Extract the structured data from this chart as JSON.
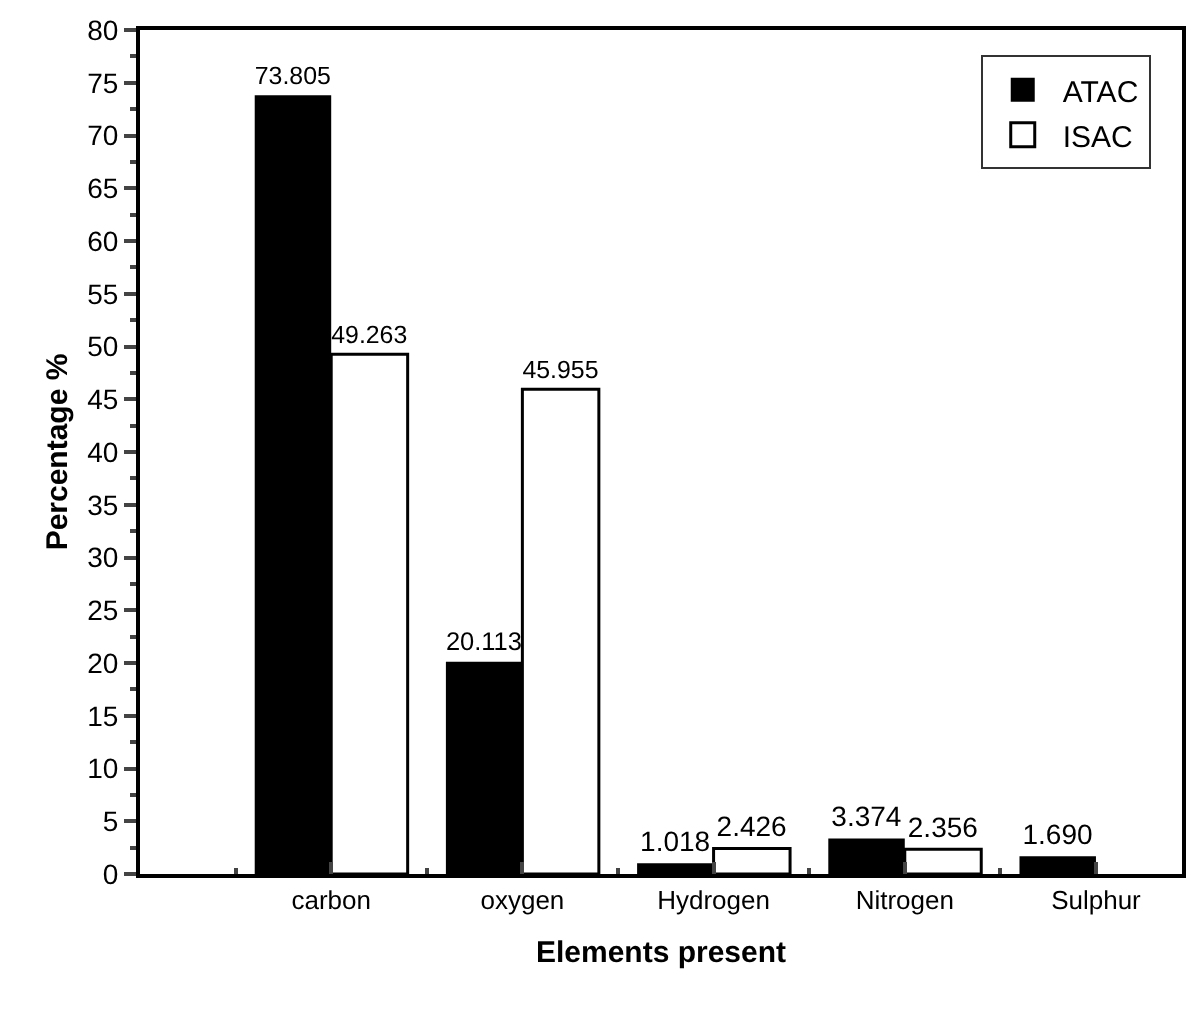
{
  "chart_data": {
    "type": "bar",
    "xlabel": "Elements present",
    "ylabel": "Percentage %",
    "categories": [
      "carbon",
      "oxygen",
      "Hydrogen",
      "Nitrogen",
      "Sulphur"
    ],
    "series": [
      {
        "name": "ATAC",
        "color": "#000000",
        "values": [
          73.805,
          20.113,
          1.018,
          3.374,
          1.69
        ],
        "value_labels": [
          "73.805",
          "20.113",
          "1.018",
          "3.374",
          "1.690"
        ]
      },
      {
        "name": "ISAC",
        "color": "#ffffff",
        "values": [
          49.263,
          45.955,
          2.426,
          2.356,
          null
        ],
        "value_labels": [
          "49.263",
          "45.955",
          "2.426",
          "2.356",
          null
        ]
      }
    ],
    "ylim": [
      0,
      80
    ],
    "yticks": [
      0,
      5,
      10,
      15,
      20,
      25,
      30,
      35,
      40,
      45,
      50,
      55,
      60,
      65,
      70,
      75,
      80
    ],
    "grid": false,
    "legend": "top right"
  }
}
